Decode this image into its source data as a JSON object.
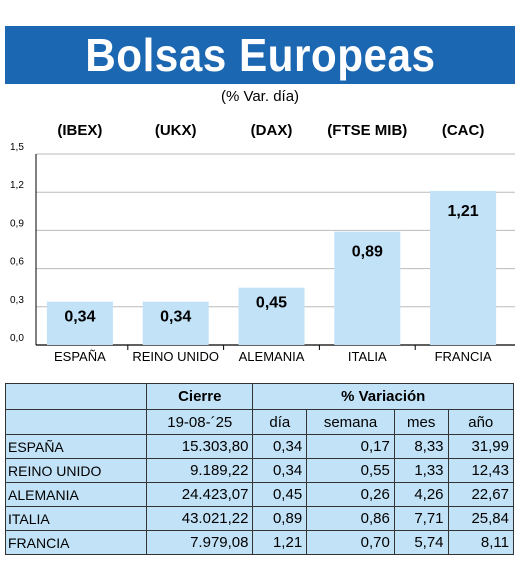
{
  "title": "Bolsas Europeas",
  "subtitle": "(% Var. día)",
  "chart_data": {
    "type": "bar",
    "indices": [
      "(IBEX)",
      "(UKX)",
      "(DAX)",
      "(FTSE MIB)",
      "(CAC)"
    ],
    "categories": [
      "ESPAÑA",
      "REINO UNIDO",
      "ALEMANIA",
      "ITALIA",
      "FRANCIA"
    ],
    "values": [
      0.34,
      0.34,
      0.45,
      0.89,
      1.21
    ],
    "value_labels": [
      "0,34",
      "0,34",
      "0,45",
      "0,89",
      "1,21"
    ],
    "yticks": [
      "0,0",
      "0,3",
      "0,6",
      "0,9",
      "1,2",
      "1,5"
    ],
    "ytick_values": [
      0,
      0.3,
      0.6,
      0.9,
      1.2,
      1.5
    ],
    "ylim": [
      0,
      1.5
    ],
    "grid": true,
    "bar_color": "#c2e2f7"
  },
  "table": {
    "header_cierre": "Cierre",
    "header_variacion": "% Variación",
    "date": "19-08-´25",
    "col_dia": "día",
    "col_semana": "semana",
    "col_mes": "mes",
    "col_anio": "año",
    "rows": [
      {
        "name": "ESPAÑA",
        "cierre": "15.303,80",
        "dia": "0,34",
        "semana": "0,17",
        "mes": "8,33",
        "anio": "31,99"
      },
      {
        "name": "REINO UNIDO",
        "cierre": "9.189,22",
        "dia": "0,34",
        "semana": "0,55",
        "mes": "1,33",
        "anio": "12,43"
      },
      {
        "name": "ALEMANIA",
        "cierre": "24.423,07",
        "dia": "0,45",
        "semana": "0,26",
        "mes": "4,26",
        "anio": "22,67"
      },
      {
        "name": "ITALIA",
        "cierre": "43.021,22",
        "dia": "0,89",
        "semana": "0,86",
        "mes": "7,71",
        "anio": "25,84"
      },
      {
        "name": "FRANCIA",
        "cierre": "7.979,08",
        "dia": "1,21",
        "semana": "0,70",
        "mes": "5,74",
        "anio": "8,11"
      }
    ]
  }
}
